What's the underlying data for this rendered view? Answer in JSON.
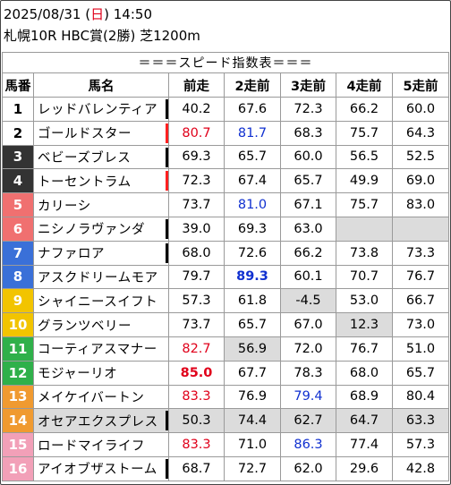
{
  "header": {
    "date": "2025/08/31",
    "weekday_open": "(",
    "weekday": "日",
    "weekday_close": ")",
    "time": "14:50",
    "race": "札幌10R HBC賞(2勝) 芝1200m"
  },
  "table_title": "＝＝＝スピード指数表＝＝＝",
  "columns": [
    "馬番",
    "馬名",
    "前走",
    "2走前",
    "3走前",
    "4走前",
    "5走前"
  ],
  "colors": {
    "frame_1": "#ffffff",
    "frame_2": "#ffffff",
    "frame_3": "#333333",
    "frame_4": "#333333",
    "frame_5": "#f07070",
    "frame_6": "#f07070",
    "frame_7": "#3a70d8",
    "frame_8": "#3a70d8",
    "frame_9": "#f2c400",
    "frame_10": "#f2c400",
    "frame_11": "#2fb04a",
    "frame_12": "#2fb04a",
    "frame_13": "#f09a30",
    "frame_14": "#f09a30",
    "frame_15": "#f2a0b8",
    "frame_16": "#f2a0b8",
    "red_text": "#e0001a",
    "blue_text": "#1030d0",
    "shaded_cell": "#dcdcdc",
    "marker_red": "#ff2020",
    "marker_black": "#000000"
  },
  "rows": [
    {
      "num": "1",
      "bg": "#ffffff",
      "fg": "#000000",
      "name": "レッドバレンティア",
      "marker": "black",
      "cells": [
        {
          "v": "40.2"
        },
        {
          "v": "67.6"
        },
        {
          "v": "72.3"
        },
        {
          "v": "66.2"
        },
        {
          "v": "60.0"
        }
      ]
    },
    {
      "num": "2",
      "bg": "#ffffff",
      "fg": "#000000",
      "name": "ゴールドスター",
      "marker": "red",
      "cells": [
        {
          "v": "80.7",
          "c": "red"
        },
        {
          "v": "81.7",
          "c": "blue"
        },
        {
          "v": "68.3"
        },
        {
          "v": "75.7"
        },
        {
          "v": "64.3"
        }
      ]
    },
    {
      "num": "3",
      "bg": "#333333",
      "fg": "#ffffff",
      "name": "ベビーズブレス",
      "marker": "black",
      "cells": [
        {
          "v": "69.3"
        },
        {
          "v": "65.7"
        },
        {
          "v": "60.0"
        },
        {
          "v": "56.5"
        },
        {
          "v": "52.5"
        }
      ]
    },
    {
      "num": "4",
      "bg": "#333333",
      "fg": "#ffffff",
      "name": "トーセントラム",
      "marker": "red",
      "cells": [
        {
          "v": "72.3"
        },
        {
          "v": "67.4"
        },
        {
          "v": "65.7"
        },
        {
          "v": "49.9"
        },
        {
          "v": "69.0"
        }
      ]
    },
    {
      "num": "5",
      "bg": "#f07070",
      "fg": "#ffffff",
      "name": "カリーシ",
      "marker": "",
      "cells": [
        {
          "v": "73.7"
        },
        {
          "v": "81.0",
          "c": "blue"
        },
        {
          "v": "67.1"
        },
        {
          "v": "75.7"
        },
        {
          "v": "83.0"
        }
      ]
    },
    {
      "num": "6",
      "bg": "#f07070",
      "fg": "#ffffff",
      "name": "ニシノラヴァンダ",
      "marker": "black",
      "cells": [
        {
          "v": "39.0"
        },
        {
          "v": "69.3"
        },
        {
          "v": "63.0"
        },
        {
          "v": "",
          "g": true
        },
        {
          "v": "",
          "g": true
        }
      ]
    },
    {
      "num": "7",
      "bg": "#3a70d8",
      "fg": "#ffffff",
      "name": "ナファロア",
      "marker": "black",
      "cells": [
        {
          "v": "68.0"
        },
        {
          "v": "72.6"
        },
        {
          "v": "66.2"
        },
        {
          "v": "73.8"
        },
        {
          "v": "73.3"
        }
      ]
    },
    {
      "num": "8",
      "bg": "#3a70d8",
      "fg": "#ffffff",
      "name": "アスクドリームモア",
      "marker": "",
      "cells": [
        {
          "v": "79.7"
        },
        {
          "v": "89.3",
          "c": "blue",
          "b": true
        },
        {
          "v": "60.1"
        },
        {
          "v": "70.7"
        },
        {
          "v": "76.7"
        }
      ]
    },
    {
      "num": "9",
      "bg": "#f2c400",
      "fg": "#ffffff",
      "name": "シャイニースイフト",
      "marker": "",
      "cells": [
        {
          "v": "57.3"
        },
        {
          "v": "61.8"
        },
        {
          "v": "-4.5",
          "g": true
        },
        {
          "v": "53.0"
        },
        {
          "v": "66.7"
        }
      ]
    },
    {
      "num": "10",
      "bg": "#f2c400",
      "fg": "#ffffff",
      "name": "グランツベリー",
      "marker": "",
      "cells": [
        {
          "v": "73.7"
        },
        {
          "v": "65.7"
        },
        {
          "v": "67.0"
        },
        {
          "v": "12.3",
          "g": true
        },
        {
          "v": "73.0"
        }
      ]
    },
    {
      "num": "11",
      "bg": "#2fb04a",
      "fg": "#ffffff",
      "name": "コーティアスマナー",
      "marker": "",
      "cells": [
        {
          "v": "82.7",
          "c": "red"
        },
        {
          "v": "56.9",
          "g": true
        },
        {
          "v": "72.0"
        },
        {
          "v": "76.7"
        },
        {
          "v": "51.0"
        }
      ]
    },
    {
      "num": "12",
      "bg": "#2fb04a",
      "fg": "#ffffff",
      "name": "モジャーリオ",
      "marker": "",
      "cells": [
        {
          "v": "85.0",
          "c": "red",
          "b": true
        },
        {
          "v": "67.7"
        },
        {
          "v": "78.3"
        },
        {
          "v": "68.0"
        },
        {
          "v": "65.7"
        }
      ]
    },
    {
      "num": "13",
      "bg": "#f09a30",
      "fg": "#ffffff",
      "name": "メイケイバートン",
      "marker": "",
      "cells": [
        {
          "v": "83.3",
          "c": "red"
        },
        {
          "v": "76.9"
        },
        {
          "v": "79.4",
          "c": "blue"
        },
        {
          "v": "68.9"
        },
        {
          "v": "80.4"
        }
      ]
    },
    {
      "num": "14",
      "bg": "#f09a30",
      "fg": "#ffffff",
      "name": "オセアエクスプレス",
      "marker": "black",
      "shade": true,
      "cells": [
        {
          "v": "50.3",
          "g": true
        },
        {
          "v": "74.4",
          "g": true
        },
        {
          "v": "62.7",
          "g": true
        },
        {
          "v": "64.7",
          "g": true
        },
        {
          "v": "63.3",
          "g": true
        }
      ]
    },
    {
      "num": "15",
      "bg": "#f2a0b8",
      "fg": "#ffffff",
      "name": "ロードマイライフ",
      "marker": "",
      "cells": [
        {
          "v": "83.3",
          "c": "red"
        },
        {
          "v": "71.0"
        },
        {
          "v": "86.3",
          "c": "blue"
        },
        {
          "v": "77.4"
        },
        {
          "v": "57.3"
        }
      ]
    },
    {
      "num": "16",
      "bg": "#f2a0b8",
      "fg": "#ffffff",
      "name": "アイオブザストーム",
      "marker": "black",
      "cells": [
        {
          "v": "68.7"
        },
        {
          "v": "72.7"
        },
        {
          "v": "62.0"
        },
        {
          "v": "29.6"
        },
        {
          "v": "42.8"
        }
      ]
    }
  ]
}
